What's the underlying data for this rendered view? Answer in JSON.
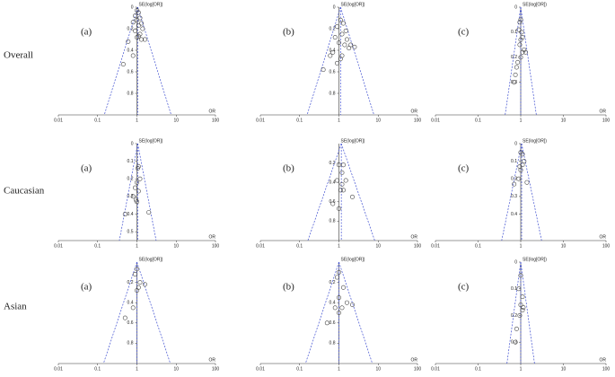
{
  "row_labels": [
    "Overall",
    "Caucasian",
    "Asian"
  ],
  "chart_data": [
    {
      "type": "scatter",
      "label": "(a)",
      "x_label": "OR",
      "y_label": "SE(log[OR])",
      "x_scale": "log",
      "y_inverted": true,
      "y_axis_at": 1,
      "pooled": 1.05,
      "color": "#444444",
      "line_color": "#3f4fd0",
      "x": [
        1.0,
        1.1,
        0.9,
        1.2,
        1.0,
        0.8,
        1.3,
        1.1,
        1.4,
        0.9,
        1.2,
        1.0,
        1.6,
        0.6,
        1.3,
        0.8,
        0.45,
        1.1
      ],
      "values": [
        0.03,
        0.05,
        0.08,
        0.1,
        0.12,
        0.14,
        0.15,
        0.17,
        0.2,
        0.22,
        0.25,
        0.28,
        0.3,
        0.32,
        0.3,
        0.45,
        0.53,
        0.27
      ],
      "xlim": [
        0.01,
        100
      ],
      "xticks": [
        0.01,
        0.1,
        1,
        10,
        100
      ],
      "ylim": [
        0,
        1
      ],
      "yticks": [
        0,
        0.2,
        0.4,
        0.6,
        0.8
      ]
    },
    {
      "type": "scatter",
      "label": "(b)",
      "x_label": "OR",
      "y_label": "SE(log[OR])",
      "x_scale": "log",
      "y_inverted": true,
      "y_axis_at": 1,
      "pooled": 1.1,
      "color": "#444444",
      "line_color": "#3f4fd0",
      "x": [
        1.1,
        1.3,
        0.9,
        1.5,
        1.2,
        0.8,
        1.0,
        1.4,
        2.0,
        2.5,
        1.8,
        0.7,
        1.2,
        0.6,
        0.9,
        1.1,
        0.4,
        1.6
      ],
      "values": [
        0.12,
        0.15,
        0.18,
        0.22,
        0.25,
        0.28,
        0.33,
        0.35,
        0.35,
        0.37,
        0.38,
        0.42,
        0.45,
        0.45,
        0.52,
        0.48,
        0.58,
        0.3
      ],
      "xlim": [
        0.01,
        100
      ],
      "xticks": [
        0.01,
        0.1,
        1,
        10,
        100
      ],
      "ylim": [
        0,
        1
      ],
      "yticks": [
        0,
        0.2,
        0.4,
        0.6,
        0.8
      ]
    },
    {
      "type": "scatter",
      "label": "(c)",
      "x_label": "OR",
      "y_label": "SE(log[OR])",
      "x_scale": "log",
      "y_inverted": true,
      "y_axis_at": 1,
      "pooled": 1.0,
      "color": "#444444",
      "line_color": "#3f4fd0",
      "x": [
        1.0,
        0.95,
        0.9,
        1.05,
        1.1,
        1.0,
        0.95,
        1.2,
        1.3,
        1.1,
        1.0,
        0.85,
        0.8,
        0.75,
        0.7
      ],
      "values": [
        0.05,
        0.06,
        0.09,
        0.1,
        0.12,
        0.13,
        0.15,
        0.17,
        0.18,
        0.18,
        0.2,
        0.22,
        0.24,
        0.27,
        0.3
      ],
      "xlim": [
        0.01,
        100
      ],
      "xticks": [
        0.01,
        0.1,
        1,
        10,
        100
      ],
      "ylim": [
        0,
        0.43
      ],
      "yticks": [
        0,
        0.1,
        0.2,
        0.3
      ]
    },
    {
      "type": "scatter",
      "label": "(a)",
      "x_label": "OR",
      "y_label": "SE(log[OR])",
      "x_scale": "log",
      "y_inverted": true,
      "y_axis_at": 1,
      "pooled": 1.05,
      "color": "#444444",
      "line_color": "#3f4fd0",
      "x": [
        1.1,
        1.05,
        1.2,
        1.0,
        0.9,
        1.1,
        0.8,
        0.95,
        0.5,
        2.0,
        1.0
      ],
      "values": [
        0.13,
        0.14,
        0.2,
        0.22,
        0.25,
        0.27,
        0.3,
        0.32,
        0.4,
        0.39,
        0.33
      ],
      "xlim": [
        0.01,
        100
      ],
      "xticks": [
        0.01,
        0.1,
        1,
        10,
        100
      ],
      "ylim": [
        0,
        0.55
      ],
      "yticks": [
        0,
        0.1,
        0.2,
        0.3,
        0.4,
        0.5
      ]
    },
    {
      "type": "scatter",
      "label": "(b)",
      "x_label": "OR",
      "y_label": "SE(log[OR])",
      "x_scale": "log",
      "y_inverted": true,
      "y_axis_at": 1,
      "pooled": 1.15,
      "color": "#444444",
      "line_color": "#3f4fd0",
      "x": [
        1.0,
        1.3,
        1.2,
        1.5,
        0.9,
        1.1,
        1.3,
        2.2,
        0.7,
        1.0,
        1.2
      ],
      "values": [
        0.22,
        0.22,
        0.3,
        0.38,
        0.38,
        0.48,
        0.48,
        0.55,
        0.62,
        0.67,
        0.42
      ],
      "xlim": [
        0.01,
        100
      ],
      "xticks": [
        0.01,
        0.1,
        1,
        10,
        100
      ],
      "ylim": [
        0,
        1
      ],
      "yticks": [
        0.2,
        0.4,
        0.6,
        0.8
      ]
    },
    {
      "type": "scatter",
      "label": "(c)",
      "x_label": "OR",
      "y_label": "SE(log[OR])",
      "x_scale": "log",
      "y_inverted": true,
      "y_axis_at": 1,
      "pooled": 1.05,
      "color": "#444444",
      "line_color": "#3f4fd0",
      "x": [
        1.0,
        1.1,
        1.2,
        1.1,
        0.95,
        1.0,
        0.9,
        1.4,
        0.7
      ],
      "values": [
        0.05,
        0.06,
        0.1,
        0.12,
        0.13,
        0.15,
        0.2,
        0.22,
        0.23
      ],
      "xlim": [
        0.01,
        100
      ],
      "xticks": [
        0.01,
        0.1,
        1,
        10,
        100
      ],
      "ylim": [
        0,
        0.55
      ],
      "yticks": [
        0,
        0.1,
        0.2,
        0.3,
        0.4
      ]
    },
    {
      "type": "scatter",
      "label": "(a)",
      "x_label": "OR",
      "y_label": "SE(log[OR])",
      "x_scale": "log",
      "y_inverted": true,
      "y_axis_at": 1,
      "pooled": 1.0,
      "color": "#444444",
      "line_color": "#3f4fd0",
      "x": [
        1.0,
        0.9,
        1.2,
        1.6,
        1.1,
        1.0,
        0.8,
        0.5
      ],
      "values": [
        0.07,
        0.12,
        0.2,
        0.22,
        0.25,
        0.28,
        0.45,
        0.55
      ],
      "xlim": [
        0.01,
        100
      ],
      "xticks": [
        0.01,
        0.1,
        1,
        10,
        100
      ],
      "ylim": [
        0,
        1
      ],
      "yticks": [
        0.2,
        0.4,
        0.6,
        0.8
      ]
    },
    {
      "type": "scatter",
      "label": "(b)",
      "x_label": "OR",
      "y_label": "SE(log[OR])",
      "x_scale": "log",
      "y_inverted": true,
      "y_axis_at": 1,
      "pooled": 1.0,
      "color": "#444444",
      "line_color": "#3f4fd0",
      "x": [
        1.0,
        0.9,
        1.3,
        1.0,
        1.6,
        2.2,
        0.8,
        1.0,
        0.5,
        1.2
      ],
      "values": [
        0.1,
        0.15,
        0.25,
        0.35,
        0.4,
        0.42,
        0.45,
        0.5,
        0.6,
        0.45
      ],
      "xlim": [
        0.01,
        100
      ],
      "xticks": [
        0.01,
        0.1,
        1,
        10,
        100
      ],
      "ylim": [
        0,
        1
      ],
      "yticks": [
        0.2,
        0.4,
        0.6,
        0.8
      ]
    },
    {
      "type": "scatter",
      "label": "(c)",
      "x_label": "OR",
      "y_label": "SE(log[OR])",
      "x_scale": "log",
      "y_inverted": true,
      "y_axis_at": 1,
      "pooled": 1.0,
      "color": "#444444",
      "line_color": "#3f4fd0",
      "x": [
        1.0,
        0.9,
        1.1,
        1.0,
        1.15,
        1.1,
        0.95,
        0.8,
        0.75
      ],
      "values": [
        0.05,
        0.1,
        0.13,
        0.16,
        0.17,
        0.18,
        0.2,
        0.25,
        0.3
      ],
      "xlim": [
        0.01,
        100
      ],
      "xticks": [
        0.01,
        0.1,
        1,
        10,
        100
      ],
      "ylim": [
        0,
        0.38
      ],
      "yticks": [
        0,
        0.1,
        0.2,
        0.3
      ]
    }
  ]
}
